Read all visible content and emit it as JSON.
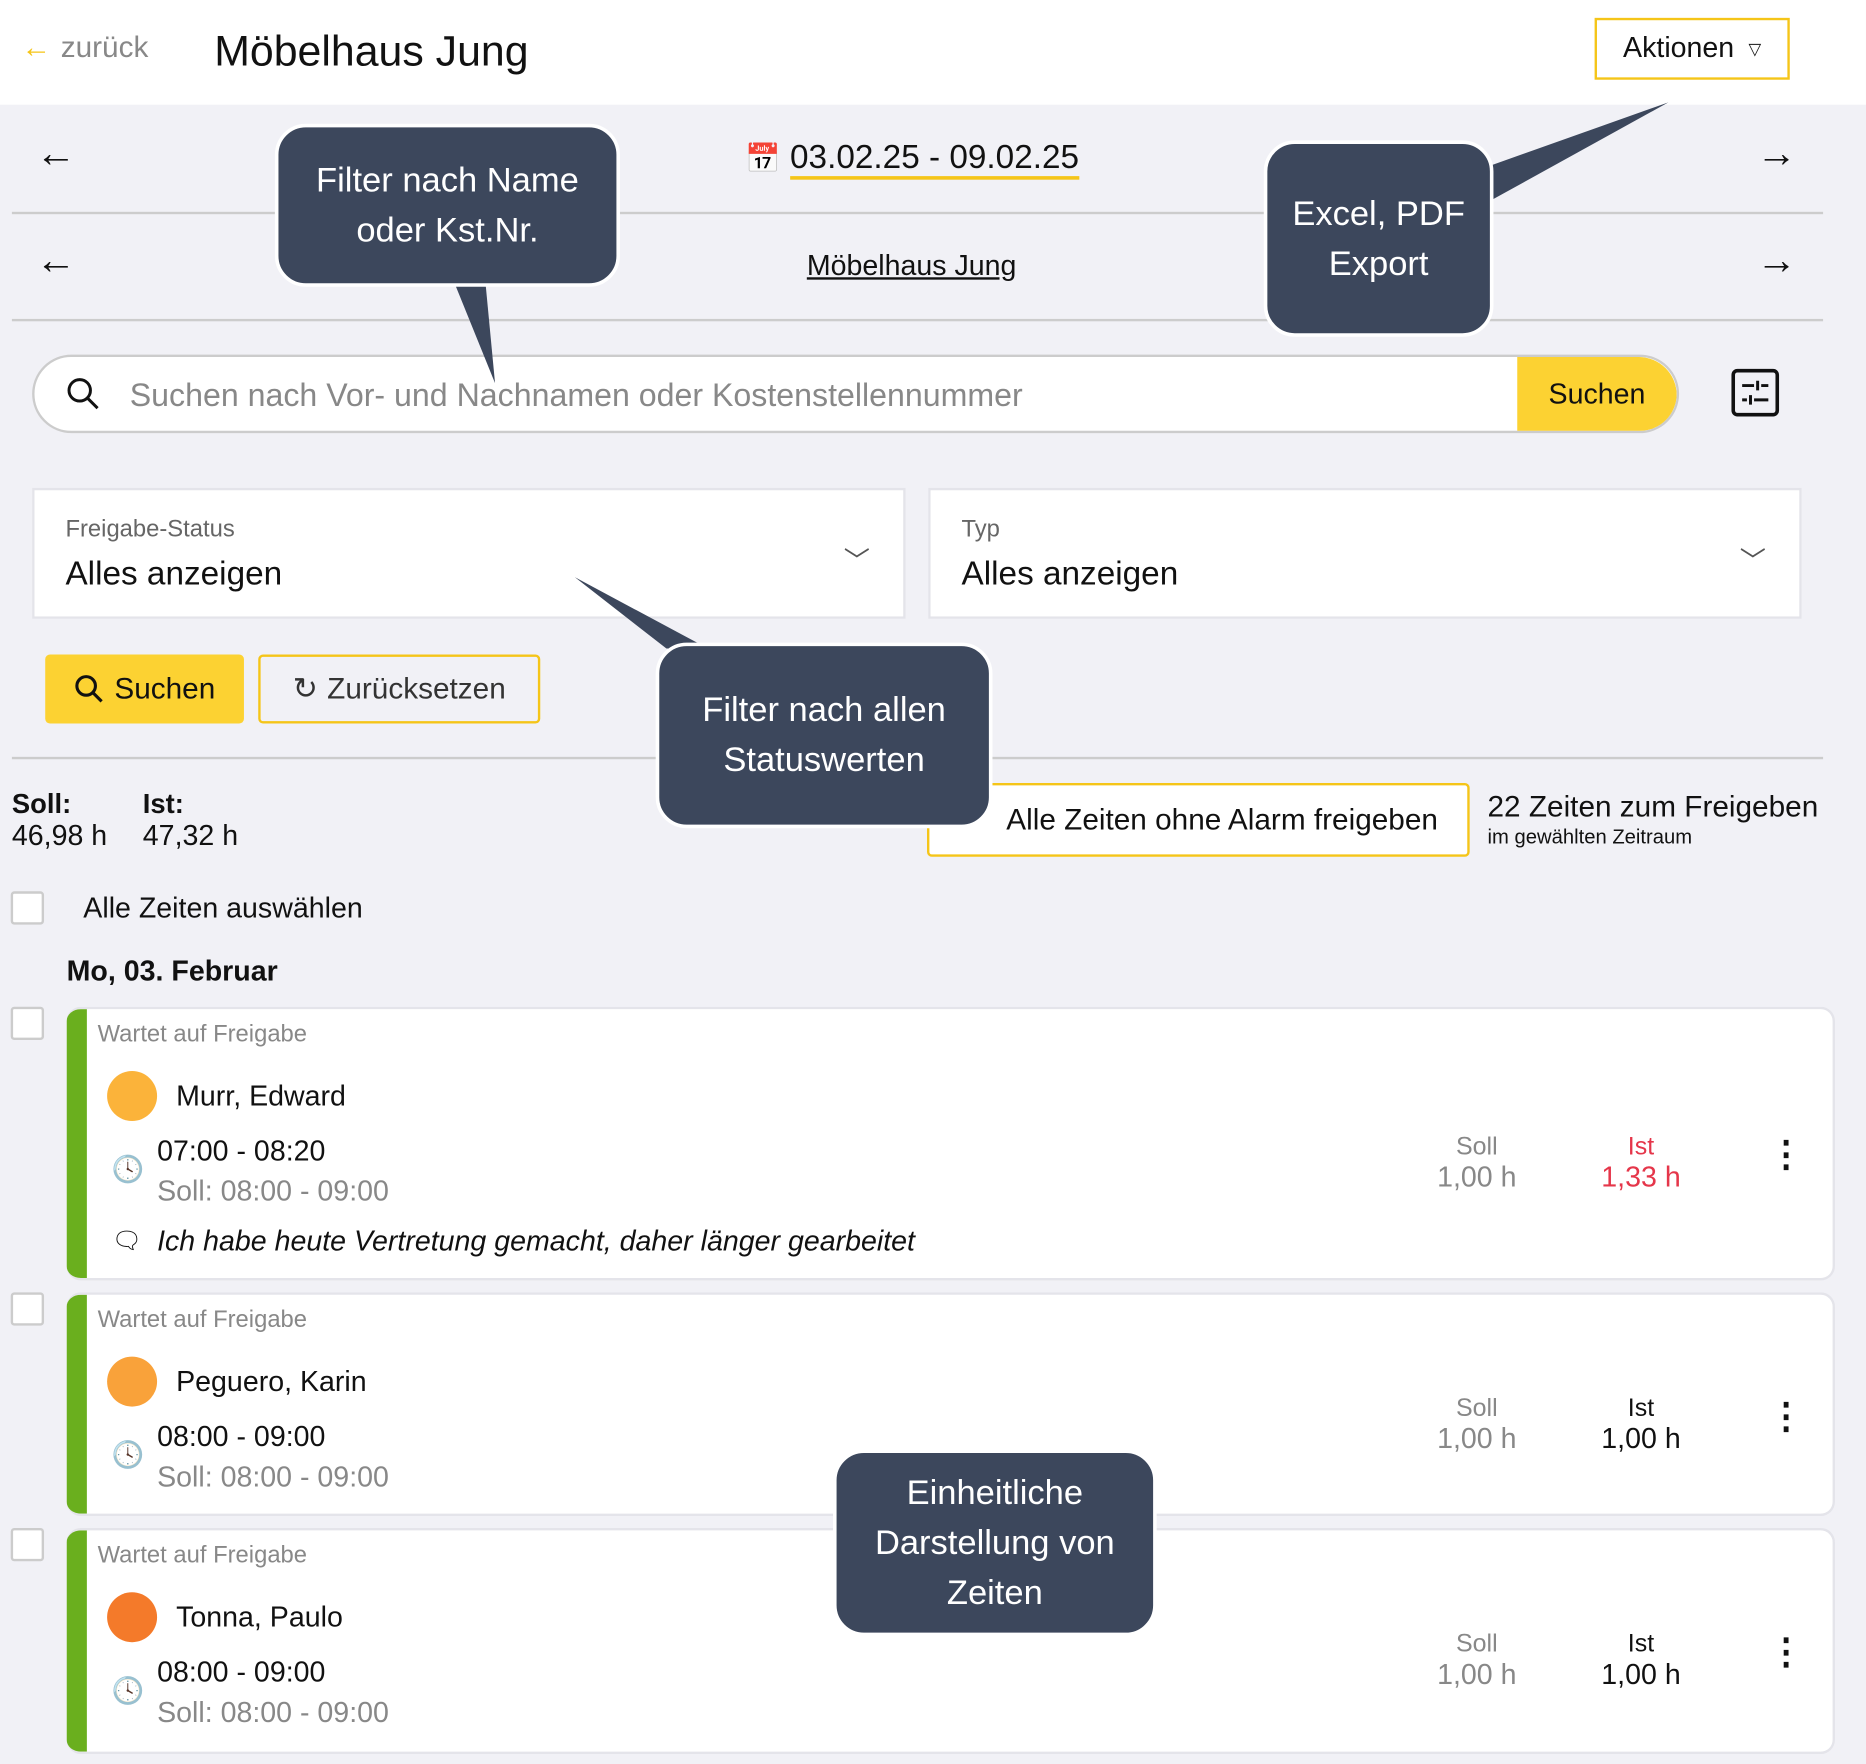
{
  "header": {
    "back_label": "zurück",
    "title": "Möbelhaus Jung",
    "actions_label": "Aktionen"
  },
  "nav": {
    "date_range": "03.02.25 - 09.02.25",
    "company": "Möbelhaus Jung"
  },
  "search": {
    "placeholder": "Suchen nach Vor- und Nachnamen oder Kostenstellennummer",
    "button": "Suchen"
  },
  "filters": [
    {
      "label": "Freigabe-Status",
      "value": "Alles anzeigen"
    },
    {
      "label": "Typ",
      "value": "Alles anzeigen"
    }
  ],
  "buttons": {
    "search": "Suchen",
    "reset": "Zurücksetzen",
    "approve_all": "Alle Zeiten ohne Alarm freigeben"
  },
  "summary": {
    "soll_label": "Soll:",
    "soll_value": "46,98 h",
    "ist_label": "Ist:",
    "ist_value": "47,32 h",
    "count_text": "22 Zeiten zum Freigeben",
    "count_sub": "im gewählten Zeitraum"
  },
  "select_all": "Alle Zeiten auswählen",
  "day_header": "Mo, 03. Februar",
  "entries": [
    {
      "status": "Wartet auf Freigabe",
      "name": "Murr, Edward",
      "time": "07:00 - 08:20",
      "soll_time": "Soll: 08:00 - 09:00",
      "note": "Ich habe heute Vertretung gemacht, daher länger gearbeitet",
      "soll_label": "Soll",
      "soll_value": "1,00 h",
      "ist_label": "Ist",
      "ist_value": "1,33 h",
      "ist_color": "#e5364a",
      "avatar_color": "#fbb33a"
    },
    {
      "status": "Wartet auf Freigabe",
      "name": "Peguero, Karin",
      "time": "08:00 - 09:00",
      "soll_time": "Soll: 08:00 - 09:00",
      "soll_label": "Soll",
      "soll_value": "1,00 h",
      "ist_label": "Ist",
      "ist_value": "1,00 h",
      "ist_color": "#111111",
      "avatar_color": "#f9a23a"
    },
    {
      "status": "Wartet auf Freigabe",
      "name": "Tonna, Paulo",
      "time": "08:00 - 09:00",
      "soll_time": "Soll: 08:00 - 09:00",
      "soll_label": "Soll",
      "soll_value": "1,00 h",
      "ist_label": "Ist",
      "ist_value": "1,00 h",
      "ist_color": "#111111",
      "avatar_color": "#f47a2a"
    }
  ],
  "callouts": {
    "search": "Filter nach Name oder Kst.Nr.",
    "export": "Excel, PDF Export",
    "status": "Filter nach allen Statuswerten",
    "display": "Einheitliche Darstellung von Zeiten"
  },
  "colors": {
    "accent": "#fcd232",
    "status_bar": "#6aaf1e",
    "callout_bg": "#3c475c"
  }
}
